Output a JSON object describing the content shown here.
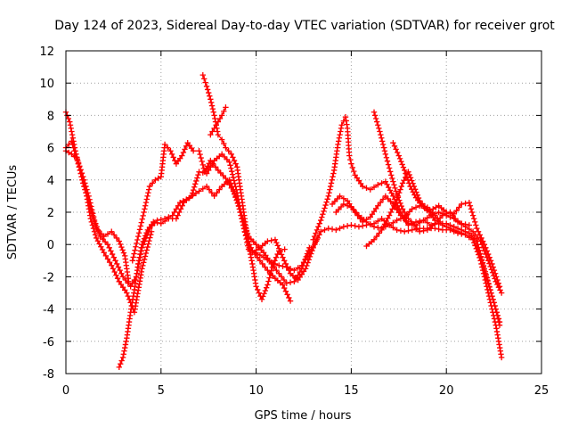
{
  "chart_data": {
    "type": "scatter",
    "title": "Day 124 of 2023, Sidereal Day-to-day VTEC variation (SDTVAR) for receiver grot",
    "xlabel": "GPS time / hours",
    "ylabel": "SDTVAR / TECUs",
    "xlim": [
      0,
      25
    ],
    "ylim": [
      -8,
      12
    ],
    "xticks": [
      0,
      5,
      10,
      15,
      20,
      25
    ],
    "yticks": [
      -8,
      -6,
      -4,
      -2,
      0,
      2,
      4,
      6,
      8,
      10,
      12
    ],
    "xtick_labels": [
      "0",
      "5",
      "10",
      "15",
      "20",
      "25"
    ],
    "ytick_labels": [
      "-8",
      "-6",
      "-4",
      "-2",
      "0",
      "2",
      "4",
      "6",
      "8",
      "10",
      "12"
    ],
    "grid": true,
    "marker": "+",
    "color": "#ff0000",
    "series": [
      {
        "name": "track-1",
        "x": [
          0.0,
          0.2,
          0.5,
          0.9,
          1.3,
          1.6,
          2.0,
          2.4,
          2.8,
          3.1,
          3.3
        ],
        "y": [
          8.2,
          7.6,
          5.8,
          3.8,
          2.2,
          1.0,
          0.5,
          0.8,
          0.2,
          -0.7,
          -2.3
        ]
      },
      {
        "name": "track-2",
        "x": [
          0.0,
          0.3,
          0.6,
          1.0,
          1.3,
          1.6,
          2.0,
          2.4,
          2.8,
          3.2,
          3.6,
          4.0,
          4.5
        ],
        "y": [
          6.0,
          6.4,
          5.2,
          3.6,
          1.6,
          0.4,
          -0.5,
          -1.3,
          -2.3,
          -3.0,
          -4.2,
          -1.5,
          0.8
        ]
      },
      {
        "name": "track-3",
        "x": [
          0.0,
          0.3,
          0.6,
          0.9,
          1.2,
          1.5,
          1.8,
          2.2,
          2.6,
          3.0,
          3.4,
          3.7,
          4.0,
          4.4,
          4.8,
          5.2,
          5.6,
          6.0,
          6.5,
          7.0,
          7.4,
          7.8,
          8.2,
          8.6,
          9.0,
          9.4,
          9.8,
          10.2,
          10.6,
          11.0,
          11.4,
          11.8
        ],
        "y": [
          5.8,
          5.6,
          5.3,
          4.2,
          3.0,
          1.5,
          0.5,
          0.0,
          -1.0,
          -2.0,
          -2.6,
          -2.0,
          -0.2,
          1.0,
          1.5,
          1.6,
          1.8,
          2.6,
          2.9,
          3.3,
          3.6,
          3.0,
          3.6,
          4.0,
          2.8,
          0.8,
          -0.4,
          -1.0,
          -1.6,
          -2.1,
          -2.5,
          -3.5
        ]
      },
      {
        "name": "track-4",
        "x": [
          2.8,
          3.0,
          3.2,
          3.4,
          3.6,
          3.8,
          4.0,
          4.3,
          4.6,
          5.0,
          5.4,
          5.8,
          6.2,
          6.6,
          7.0,
          7.4,
          7.8,
          8.2,
          8.6,
          9.0,
          9.3,
          9.6,
          10.0,
          10.4,
          10.8,
          11.2,
          11.6,
          12.0,
          12.4,
          12.8,
          13.2
        ],
        "y": [
          -7.6,
          -7.0,
          -5.8,
          -4.2,
          -2.8,
          -1.2,
          0.0,
          0.9,
          1.4,
          1.3,
          1.6,
          1.6,
          2.6,
          3.0,
          4.5,
          4.4,
          5.2,
          5.6,
          5.1,
          3.2,
          1.4,
          -0.3,
          -0.5,
          -0.8,
          -1.1,
          -1.3,
          -1.4,
          -1.6,
          -1.3,
          -0.5,
          0.3
        ]
      },
      {
        "name": "track-5",
        "x": [
          3.5,
          3.8,
          4.1,
          4.4,
          4.7,
          5.0,
          5.2,
          5.5,
          5.8,
          6.1,
          6.4,
          6.7,
          7.0,
          7.3,
          7.6,
          8.0,
          8.4,
          8.8,
          9.2,
          9.6,
          10.0,
          10.4,
          10.8,
          11.2,
          11.6,
          12.0,
          12.4,
          12.8
        ],
        "y": [
          -1.0,
          0.5,
          2.0,
          3.6,
          4.0,
          4.2,
          6.2,
          5.8,
          5.0,
          5.5,
          6.3,
          5.8,
          5.8,
          4.5,
          5.2,
          4.6,
          4.1,
          3.3,
          2.0,
          0.5,
          0.0,
          -0.5,
          -1.2,
          -1.8,
          -2.4,
          -2.3,
          -1.5,
          -0.2
        ]
      },
      {
        "name": "track-6",
        "x": [
          7.2,
          7.4,
          7.6,
          7.8,
          8.0,
          8.2,
          8.4,
          8.7,
          9.0,
          9.2,
          9.4,
          9.6,
          9.8,
          10.0,
          10.3,
          10.6,
          10.9,
          11.2,
          11.5
        ],
        "y": [
          10.5,
          9.8,
          9.0,
          8.0,
          6.8,
          6.5,
          6.0,
          5.6,
          4.8,
          3.2,
          1.6,
          0.0,
          -1.2,
          -2.6,
          -3.4,
          -2.5,
          -1.2,
          -0.4,
          -0.3
        ]
      },
      {
        "name": "track-7",
        "x": [
          7.6,
          7.8,
          8.0,
          8.2,
          8.4
        ],
        "y": [
          6.8,
          7.2,
          7.6,
          8.0,
          8.5
        ]
      },
      {
        "name": "track-8",
        "x": [
          9.8,
          10.2,
          10.6,
          11.0,
          11.4,
          11.8,
          12.2,
          12.6,
          13.0,
          13.4,
          13.8,
          14.2,
          14.6,
          15.0,
          15.4,
          15.8,
          16.2,
          16.6,
          17.0,
          17.4,
          17.8,
          18.2,
          18.6,
          19.0,
          19.4,
          19.8,
          20.2,
          20.6,
          21.0,
          21.4,
          21.8,
          22.2,
          22.5,
          22.8
        ],
        "y": [
          -0.5,
          -0.2,
          0.2,
          0.3,
          -0.8,
          -1.8,
          -2.2,
          -1.5,
          -0.2,
          0.8,
          1.0,
          0.9,
          1.1,
          1.2,
          1.1,
          1.2,
          1.3,
          1.6,
          1.2,
          0.9,
          0.8,
          0.9,
          1.0,
          1.0,
          1.0,
          0.9,
          0.9,
          0.7,
          0.6,
          0.3,
          -0.8,
          -2.4,
          -3.6,
          -5.0
        ]
      },
      {
        "name": "track-9",
        "x": [
          13.0,
          13.4,
          13.8,
          14.1,
          14.3,
          14.5,
          14.7,
          14.8,
          14.9,
          15.0,
          15.2,
          15.6,
          16.0,
          16.4,
          16.8,
          17.2,
          17.6,
          18.0,
          18.4,
          18.8,
          19.2,
          19.6,
          20.0,
          20.4,
          20.8,
          21.2,
          21.6,
          22.0,
          22.4,
          22.8
        ],
        "y": [
          0.3,
          1.5,
          3.0,
          4.6,
          6.2,
          7.4,
          7.9,
          7.2,
          5.5,
          5.0,
          4.3,
          3.6,
          3.4,
          3.7,
          3.9,
          3.0,
          2.0,
          1.2,
          1.4,
          1.5,
          1.2,
          1.3,
          1.3,
          1.1,
          0.9,
          0.7,
          0.2,
          -1.5,
          -3.2,
          -4.8
        ]
      },
      {
        "name": "track-10",
        "x": [
          14.0,
          14.4,
          14.8,
          15.2,
          15.6,
          16.0,
          16.4,
          16.8,
          17.2,
          17.6,
          18.0,
          18.4,
          18.8,
          19.2,
          19.6,
          20.0,
          20.4,
          20.8,
          21.2
        ],
        "y": [
          2.5,
          3.0,
          2.7,
          2.0,
          1.4,
          1.7,
          2.4,
          3.0,
          2.5,
          1.8,
          1.3,
          1.2,
          1.5,
          1.8,
          2.0,
          1.8,
          1.6,
          1.3,
          1.2
        ]
      },
      {
        "name": "track-11",
        "x": [
          14.2,
          14.6,
          15.0,
          15.4,
          15.8,
          16.2,
          16.6,
          17.0,
          17.4,
          17.8,
          18.2,
          18.6,
          19.0,
          19.4,
          19.8,
          20.2,
          20.6,
          21.0,
          21.4,
          21.8,
          22.2,
          22.6,
          22.9
        ],
        "y": [
          2.0,
          2.5,
          2.3,
          1.8,
          1.4,
          1.1,
          1.0,
          1.2,
          1.5,
          1.7,
          2.2,
          2.4,
          2.3,
          1.8,
          1.2,
          1.0,
          0.8,
          0.6,
          0.3,
          -1.0,
          -3.0,
          -5.0,
          -7.0
        ]
      },
      {
        "name": "track-12",
        "x": [
          16.2,
          16.5,
          16.8,
          17.1,
          17.4,
          17.7,
          18.0,
          18.3,
          18.6,
          19.0,
          19.4,
          19.8,
          20.2,
          20.6,
          21.0,
          21.4,
          21.8,
          22.2,
          22.6,
          22.9
        ],
        "y": [
          8.2,
          7.0,
          5.6,
          4.3,
          3.1,
          2.2,
          1.6,
          1.2,
          0.8,
          0.9,
          1.3,
          1.8,
          2.0,
          1.4,
          1.1,
          0.8,
          0.2,
          -1.0,
          -2.3,
          -3.0
        ]
      },
      {
        "name": "track-13",
        "x": [
          17.2,
          17.5,
          17.8,
          18.1,
          18.4,
          18.7,
          19.0,
          19.3,
          19.6,
          20.0,
          20.4,
          20.8,
          21.2,
          21.6,
          22.0,
          22.4,
          22.8
        ],
        "y": [
          6.3,
          5.5,
          4.6,
          3.6,
          2.9,
          2.4,
          2.1,
          2.2,
          2.4,
          2.0,
          1.9,
          2.5,
          2.6,
          1.0,
          0.0,
          -1.2,
          -2.6
        ]
      },
      {
        "name": "track-14",
        "x": [
          15.8,
          16.2,
          16.6,
          17.0,
          17.4,
          17.7,
          18.0,
          18.3,
          18.6,
          19.0,
          19.4
        ],
        "y": [
          -0.1,
          0.3,
          0.9,
          1.8,
          2.8,
          3.8,
          4.5,
          3.6,
          2.7,
          2.2,
          1.5
        ]
      }
    ]
  }
}
